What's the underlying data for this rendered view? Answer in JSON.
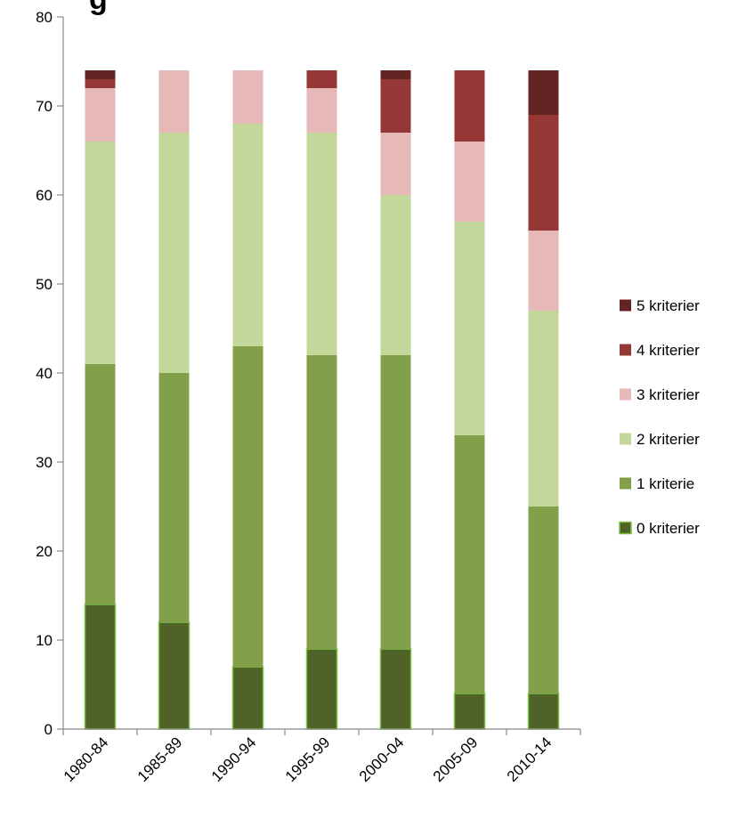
{
  "chart_data": {
    "type": "bar",
    "stacked": true,
    "categories": [
      "1980-84",
      "1985-89",
      "1990-94",
      "1995-99",
      "2000-04",
      "2005-09",
      "2010-14"
    ],
    "series": [
      {
        "name": "0 kriterier",
        "color": "#4f6228",
        "values": [
          14,
          12,
          7,
          9,
          9,
          4,
          4
        ]
      },
      {
        "name": "1 kriterie",
        "color": "#82a04a",
        "values": [
          27,
          28,
          36,
          33,
          33,
          29,
          21
        ]
      },
      {
        "name": "2 kriterier",
        "color": "#c4d79b",
        "values": [
          25,
          27,
          25,
          25,
          18,
          24,
          22
        ]
      },
      {
        "name": "3 kriterier",
        "color": "#e6b8b7",
        "values": [
          6,
          7,
          6,
          5,
          7,
          9,
          9
        ]
      },
      {
        "name": "4 kriterier",
        "color": "#953735",
        "values": [
          1,
          0,
          0,
          2,
          6,
          8,
          13
        ]
      },
      {
        "name": "5 kriterier",
        "color": "#632523",
        "values": [
          1,
          0,
          0,
          0,
          1,
          0,
          5
        ]
      }
    ],
    "ylim": [
      0,
      80
    ],
    "yticks": [
      0,
      10,
      20,
      30,
      40,
      50,
      60,
      70,
      80
    ],
    "grid": false,
    "legend_position": "right",
    "title_fragment": "g"
  }
}
